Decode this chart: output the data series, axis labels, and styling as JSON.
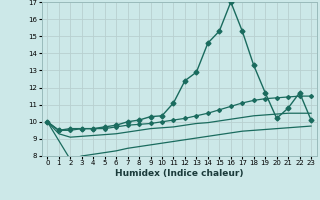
{
  "title": "",
  "xlabel": "Humidex (Indice chaleur)",
  "xlim": [
    -0.5,
    23.5
  ],
  "ylim": [
    8,
    17
  ],
  "yticks": [
    8,
    9,
    10,
    11,
    12,
    13,
    14,
    15,
    16,
    17
  ],
  "xticks": [
    0,
    1,
    2,
    3,
    4,
    5,
    6,
    7,
    8,
    9,
    10,
    11,
    12,
    13,
    14,
    15,
    16,
    17,
    18,
    19,
    20,
    21,
    22,
    23
  ],
  "background_color": "#cce8e8",
  "grid_color": "#b8d0d0",
  "line_color": "#1a6b5e",
  "series": [
    {
      "x": [
        0,
        1,
        2,
        3,
        4,
        5,
        6,
        7,
        8,
        9,
        10,
        11,
        12,
        13,
        14,
        15,
        16,
        17,
        18,
        19,
        20,
        21,
        22,
        23
      ],
      "y": [
        10.0,
        9.5,
        9.6,
        9.6,
        9.6,
        9.7,
        9.8,
        10.0,
        10.1,
        10.3,
        10.35,
        11.1,
        12.4,
        12.9,
        14.6,
        15.3,
        17.0,
        15.3,
        13.3,
        11.7,
        10.2,
        10.8,
        11.7,
        10.1
      ],
      "marker": "D",
      "markersize": 2.5,
      "linewidth": 1.0
    },
    {
      "x": [
        0,
        1,
        2,
        3,
        4,
        5,
        6,
        7,
        8,
        9,
        10,
        11,
        12,
        13,
        14,
        15,
        16,
        17,
        18,
        19,
        20,
        21,
        22,
        23
      ],
      "y": [
        10.0,
        9.5,
        9.5,
        9.6,
        9.6,
        9.6,
        9.7,
        9.8,
        9.85,
        9.9,
        10.0,
        10.1,
        10.2,
        10.35,
        10.5,
        10.7,
        10.9,
        11.1,
        11.25,
        11.35,
        11.4,
        11.45,
        11.5,
        11.5
      ],
      "marker": "D",
      "markersize": 2.0,
      "linewidth": 0.9
    },
    {
      "x": [
        0,
        1,
        2,
        3,
        4,
        5,
        6,
        7,
        8,
        9,
        10,
        11,
        12,
        13,
        14,
        15,
        16,
        17,
        18,
        19,
        20,
        21,
        22,
        23
      ],
      "y": [
        10.0,
        9.3,
        9.1,
        9.15,
        9.2,
        9.25,
        9.3,
        9.4,
        9.5,
        9.6,
        9.65,
        9.7,
        9.8,
        9.9,
        9.95,
        10.05,
        10.15,
        10.25,
        10.35,
        10.4,
        10.45,
        10.5,
        10.5,
        10.5
      ],
      "marker": null,
      "markersize": 0,
      "linewidth": 0.9
    },
    {
      "x": [
        0,
        1,
        2,
        3,
        4,
        5,
        6,
        7,
        8,
        9,
        10,
        11,
        12,
        13,
        14,
        15,
        16,
        17,
        18,
        19,
        20,
        21,
        22,
        23
      ],
      "y": [
        10.0,
        8.9,
        7.8,
        8.0,
        8.1,
        8.2,
        8.3,
        8.45,
        8.55,
        8.65,
        8.75,
        8.85,
        8.95,
        9.05,
        9.15,
        9.25,
        9.35,
        9.45,
        9.5,
        9.55,
        9.6,
        9.65,
        9.7,
        9.75
      ],
      "marker": null,
      "markersize": 0,
      "linewidth": 0.9
    }
  ]
}
